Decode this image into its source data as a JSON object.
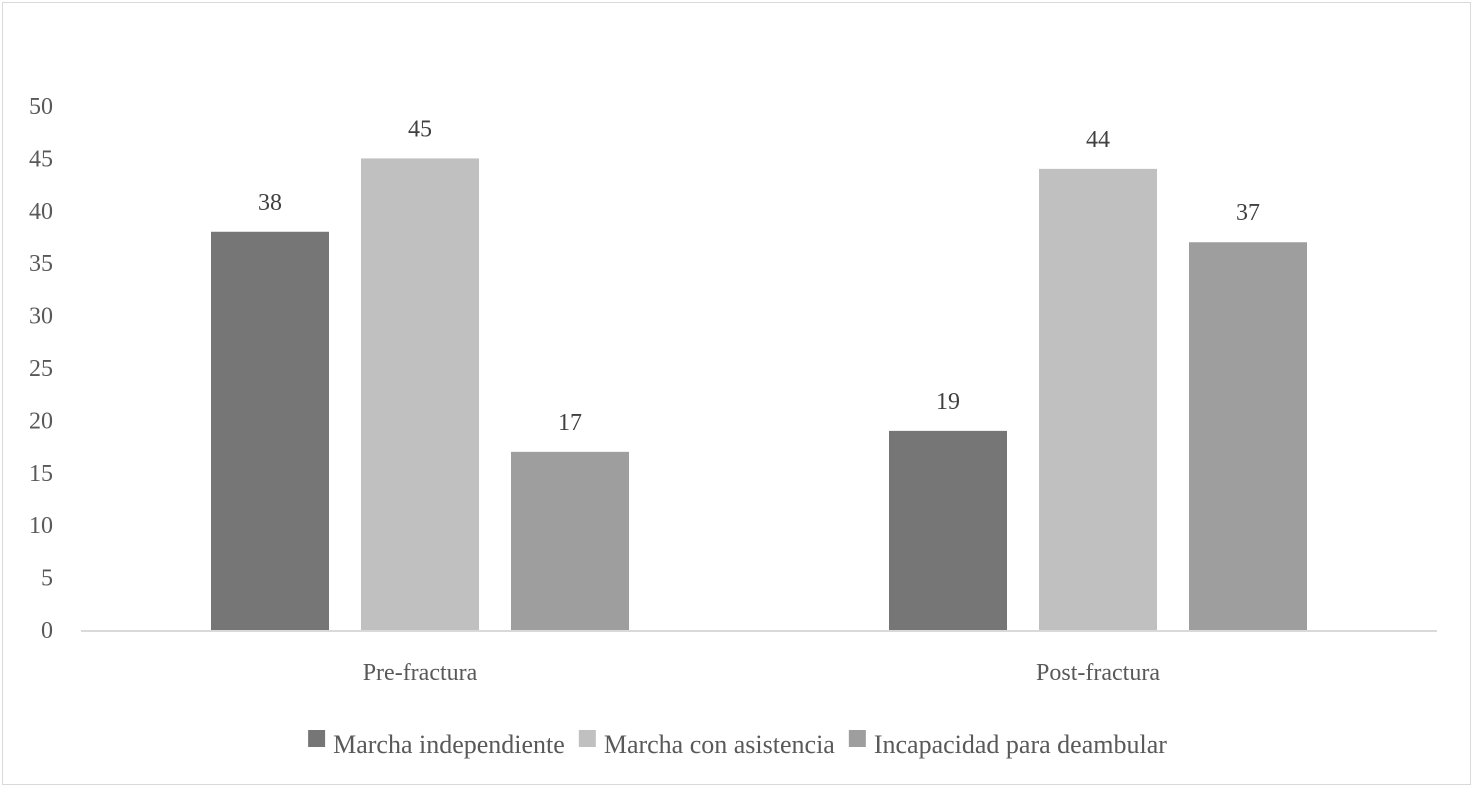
{
  "chart_data": {
    "type": "bar",
    "categories": [
      "Pre-fractura",
      "Post-fractura"
    ],
    "series": [
      {
        "name": "Marcha independiente",
        "values": [
          38,
          19
        ],
        "color": "#767676"
      },
      {
        "name": "Marcha con asistencia",
        "values": [
          45,
          44
        ],
        "color": "#c0c0c0"
      },
      {
        "name": "Incapacidad para deambular",
        "values": [
          17,
          37
        ],
        "color": "#9e9e9e"
      }
    ],
    "ylim": [
      0,
      50
    ],
    "y_ticks": [
      0,
      5,
      10,
      15,
      20,
      25,
      30,
      35,
      40,
      45,
      50
    ],
    "grid": false,
    "legend_position": "bottom",
    "axis_color": "#d9d9d9"
  }
}
